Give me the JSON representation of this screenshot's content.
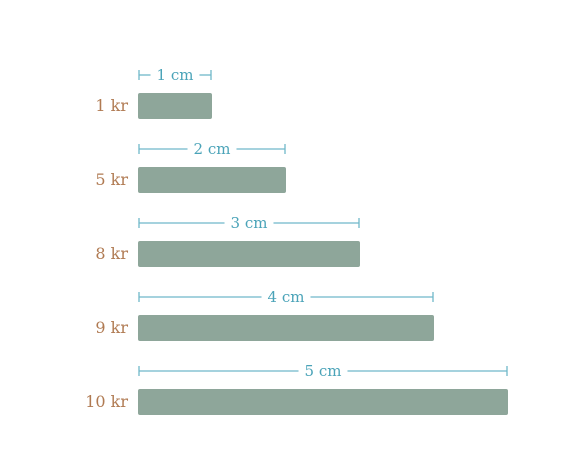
{
  "chart_data": {
    "type": "bar",
    "orientation": "horizontal",
    "categories": [
      "1 kr",
      "5 kr",
      "8 kr",
      "9 kr",
      "10 kr"
    ],
    "values": [
      1,
      2,
      3,
      4,
      5
    ],
    "value_labels": [
      "1 cm",
      "2 cm",
      "3 cm",
      "4 cm",
      "5 cm"
    ],
    "unit": "cm",
    "title": "",
    "xlabel": "",
    "ylabel": "",
    "xlim": [
      0,
      5
    ],
    "grid": false,
    "colors": {
      "bar": "#8ea69a",
      "category_label": "#b07a52",
      "dimension": "#4aa3b8"
    }
  }
}
